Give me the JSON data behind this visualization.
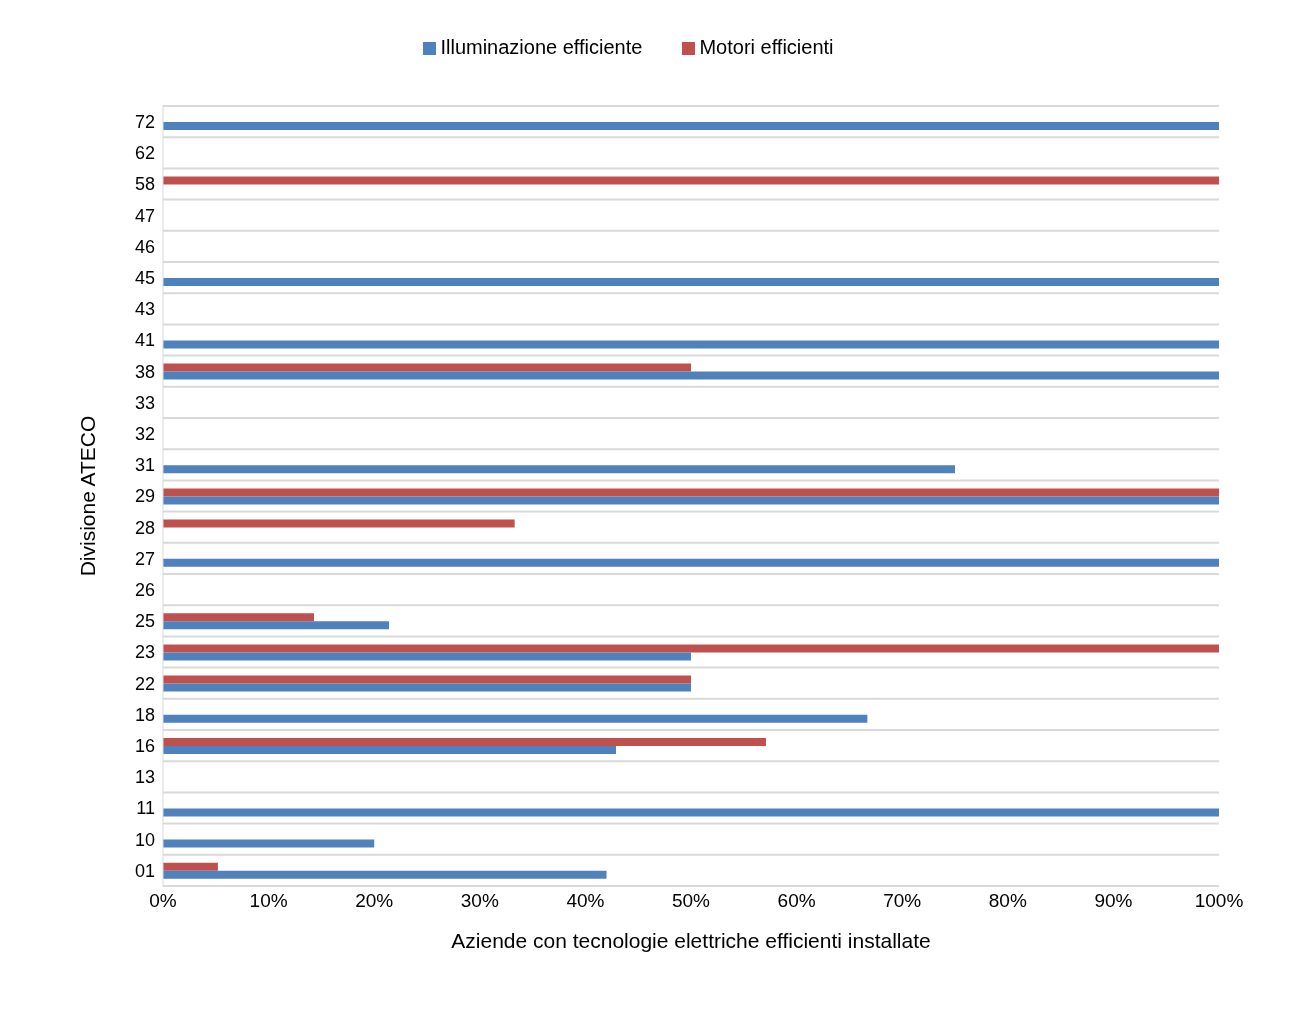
{
  "chart_data": {
    "type": "bar",
    "orientation": "horizontal",
    "xlabel": "Aziende con tecnologie elettriche efficienti installate",
    "ylabel": "Divisione ATECO",
    "categories": [
      "72",
      "62",
      "58",
      "47",
      "46",
      "45",
      "43",
      "41",
      "38",
      "33",
      "32",
      "31",
      "29",
      "28",
      "27",
      "26",
      "25",
      "23",
      "22",
      "18",
      "16",
      "13",
      "11",
      "10",
      "01"
    ],
    "series": [
      {
        "name": "Motori efficienti",
        "color": "#c0504d",
        "values": [
          null,
          null,
          100,
          null,
          null,
          null,
          null,
          null,
          50,
          null,
          null,
          null,
          100,
          33.3,
          null,
          null,
          14.3,
          100,
          50,
          null,
          57.1,
          null,
          null,
          null,
          5.2
        ]
      },
      {
        "name": "Illuminazione efficiente",
        "color": "#4f81bd",
        "values": [
          100,
          null,
          null,
          null,
          null,
          100,
          null,
          100,
          100,
          null,
          null,
          75,
          100,
          null,
          100,
          null,
          21.4,
          50,
          50,
          66.7,
          42.9,
          null,
          100,
          20,
          42
        ]
      }
    ],
    "xlim": [
      0,
      100
    ],
    "xticks": [
      {
        "value": 0,
        "label": "0%"
      },
      {
        "value": 10,
        "label": "10%"
      },
      {
        "value": 20,
        "label": "20%"
      },
      {
        "value": 30,
        "label": "30%"
      },
      {
        "value": 40,
        "label": "40%"
      },
      {
        "value": 50,
        "label": "50%"
      },
      {
        "value": 60,
        "label": "60%"
      },
      {
        "value": 70,
        "label": "70%"
      },
      {
        "value": 80,
        "label": "80%"
      },
      {
        "value": 90,
        "label": "90%"
      },
      {
        "value": 100,
        "label": "100%"
      }
    ],
    "grid": "y",
    "legend": "top"
  }
}
